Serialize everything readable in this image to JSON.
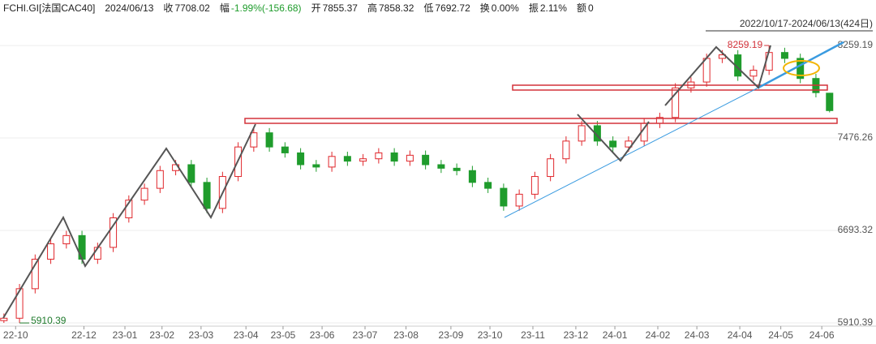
{
  "header": {
    "symbol": "FCHI.GI[法国CAC40]",
    "date": "2024/06/13",
    "fields": [
      {
        "label": "收",
        "value": "7708.02"
      },
      {
        "label": "幅",
        "value": "-1.99%(-156.68)"
      },
      {
        "label": "开",
        "value": "7855.37"
      },
      {
        "label": "高",
        "value": "7858.32"
      },
      {
        "label": "低",
        "value": "7692.72"
      },
      {
        "label": "换",
        "value": "0.00%"
      },
      {
        "label": "振",
        "value": "2.11%"
      },
      {
        "label": "额",
        "value": "0"
      }
    ]
  },
  "chart_data": {
    "type": "candlestick",
    "range_label": "2022/10/17-2024/06/13(424日)",
    "max_label": "8259.19",
    "min_label": "5910.39",
    "up_color": "#e0262b",
    "down_color": "#1f9c2c",
    "x": [
      0,
      8,
      16,
      24,
      32,
      40,
      48,
      56,
      64,
      72,
      80,
      88,
      96,
      104,
      112,
      120,
      128,
      136,
      144,
      152,
      160,
      168,
      176,
      184,
      192,
      200,
      208,
      216,
      224,
      232,
      240,
      248,
      256,
      264,
      272,
      280,
      288,
      296,
      304,
      312,
      320,
      328,
      336,
      344,
      352,
      360,
      368,
      376,
      384,
      392,
      400,
      408,
      416,
      423
    ],
    "open": [
      5930,
      5950,
      6200,
      6450,
      6580,
      6650,
      6450,
      6550,
      6800,
      6950,
      7050,
      7200,
      7250,
      7100,
      6880,
      7150,
      7400,
      7520,
      7400,
      7350,
      7250,
      7230,
      7320,
      7280,
      7300,
      7350,
      7280,
      7330,
      7250,
      7220,
      7200,
      7100,
      7050,
      6900,
      7000,
      7150,
      7300,
      7450,
      7580,
      7450,
      7400,
      7450,
      7600,
      7650,
      7900,
      7950,
      8150,
      8180,
      8000,
      8050,
      8200,
      8150,
      7980,
      7855.37
    ],
    "high": [
      5990,
      6240,
      6490,
      6620,
      6690,
      6690,
      6590,
      6840,
      6990,
      7090,
      7240,
      7290,
      7290,
      7140,
      7190,
      7440,
      7560,
      7560,
      7440,
      7390,
      7290,
      7360,
      7360,
      7340,
      7390,
      7390,
      7370,
      7370,
      7290,
      7260,
      7240,
      7140,
      7090,
      7040,
      7190,
      7340,
      7490,
      7620,
      7620,
      7490,
      7490,
      7640,
      7690,
      7940,
      7990,
      8190,
      8220,
      8220,
      8090,
      8259.19,
      8240,
      8190,
      8020,
      7858.32
    ],
    "low": [
      5910.39,
      5910,
      6160,
      6410,
      6540,
      6410,
      6410,
      6510,
      6760,
      6910,
      7010,
      7160,
      7060,
      6840,
      6840,
      7110,
      7360,
      7360,
      7310,
      7210,
      7190,
      7190,
      7240,
      7240,
      7260,
      7240,
      7240,
      7210,
      7180,
      7160,
      7060,
      7010,
      6860,
      6860,
      6960,
      7110,
      7260,
      7410,
      7410,
      7360,
      7360,
      7410,
      7560,
      7610,
      7860,
      7910,
      8110,
      7960,
      7960,
      8010,
      8110,
      7940,
      7820,
      7692.72
    ],
    "close": [
      5950,
      6200,
      6450,
      6580,
      6650,
      6450,
      6550,
      6800,
      6950,
      7050,
      7200,
      7250,
      7100,
      6880,
      7150,
      7400,
      7520,
      7400,
      7350,
      7250,
      7230,
      7320,
      7280,
      7300,
      7350,
      7280,
      7330,
      7250,
      7220,
      7200,
      7100,
      7050,
      6900,
      7000,
      7150,
      7300,
      7450,
      7580,
      7450,
      7400,
      7450,
      7600,
      7650,
      7900,
      7950,
      8150,
      8180,
      8000,
      8050,
      8200,
      8150,
      7980,
      7860,
      7708.02
    ],
    "xlim": [
      -2,
      426
    ],
    "xticks": [
      {
        "value": 6,
        "label": "22-10"
      },
      {
        "value": 41,
        "label": "22-12"
      },
      {
        "value": 62,
        "label": "23-01"
      },
      {
        "value": 81,
        "label": "23-02"
      },
      {
        "value": 101,
        "label": "23-03"
      },
      {
        "value": 124,
        "label": "23-04"
      },
      {
        "value": 143,
        "label": "23-05"
      },
      {
        "value": 163,
        "label": "23-06"
      },
      {
        "value": 185,
        "label": "23-07"
      },
      {
        "value": 206,
        "label": "23-08"
      },
      {
        "value": 229,
        "label": "23-09"
      },
      {
        "value": 249,
        "label": "23-10"
      },
      {
        "value": 271,
        "label": "23-11"
      },
      {
        "value": 293,
        "label": "23-12"
      },
      {
        "value": 313,
        "label": "24-01"
      },
      {
        "value": 335,
        "label": "24-02"
      },
      {
        "value": 355,
        "label": "24-03"
      },
      {
        "value": 377,
        "label": "24-04"
      },
      {
        "value": 398,
        "label": "24-05"
      },
      {
        "value": 419,
        "label": "24-06"
      }
    ],
    "ylim": [
      5883,
      8397
    ],
    "yticks": [
      8259.19,
      7476.26,
      6693.32,
      5910.39
    ],
    "grid": true
  }
}
